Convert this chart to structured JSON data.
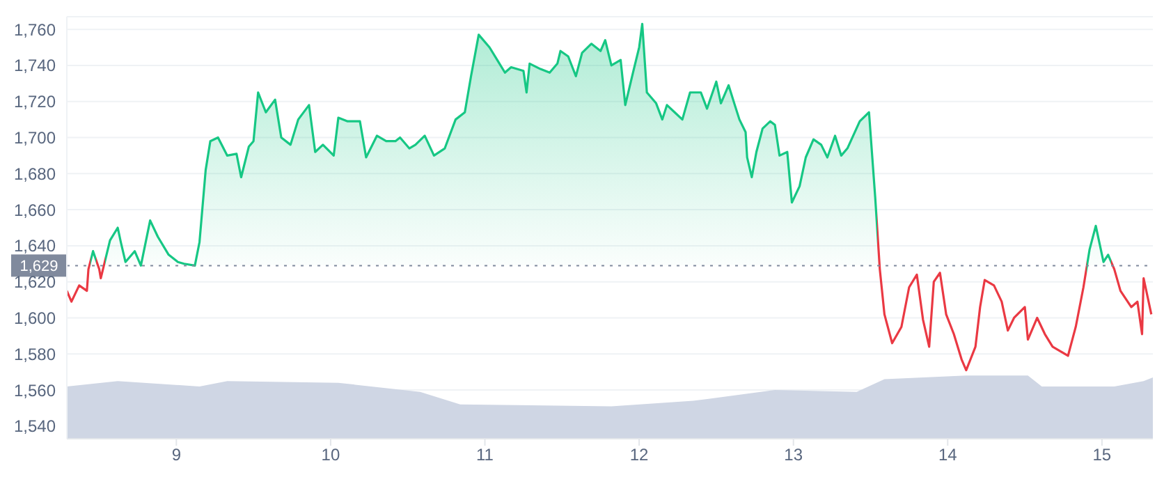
{
  "chart_data": {
    "type": "area",
    "xlim": [
      8.29,
      15.33
    ],
    "xticks": [
      9,
      10,
      11,
      12,
      13,
      14,
      15
    ],
    "ylim": [
      1533,
      1767
    ],
    "yticks": [
      {
        "value": 1540,
        "label": "1,540"
      },
      {
        "value": 1560,
        "label": "1,560"
      },
      {
        "value": 1580,
        "label": "1,580"
      },
      {
        "value": 1600,
        "label": "1,600"
      },
      {
        "value": 1620,
        "label": "1,620"
      },
      {
        "value": 1640,
        "label": "1,640"
      },
      {
        "value": 1660,
        "label": "1,660"
      },
      {
        "value": 1680,
        "label": "1,680"
      },
      {
        "value": 1700,
        "label": "1,700"
      },
      {
        "value": 1720,
        "label": "1,720"
      },
      {
        "value": 1740,
        "label": "1,740"
      },
      {
        "value": 1760,
        "label": "1,760"
      }
    ],
    "grid": "y",
    "marker": "none",
    "ref_lines": [
      {
        "axis": "y",
        "value": 1629,
        "label": "1,629",
        "color": "#808a9d",
        "line_style": "dotted"
      }
    ],
    "series": [
      {
        "type": "area",
        "color": "#cfd6e4",
        "x": [
          8.29,
          8.62,
          9.15,
          9.33,
          10.05,
          10.58,
          10.84,
          11.82,
          12.35,
          12.88,
          13.41,
          13.59,
          14.12,
          14.52,
          14.61,
          15.08,
          15.27,
          15.33
        ],
        "values": [
          1562,
          1565,
          1562,
          1565,
          1564,
          1559,
          1552,
          1551,
          1554,
          1560,
          1559,
          1566,
          1568,
          1568,
          1562,
          1562,
          1565,
          1567
        ]
      },
      {
        "color": "#16c784",
        "x": [
          8.29,
          8.32,
          8.37,
          8.42,
          8.43,
          8.46,
          8.5,
          8.51,
          8.57,
          8.62,
          8.64,
          8.67,
          8.73,
          8.77,
          8.83,
          8.88,
          8.95,
          9.01,
          9.05,
          9.12,
          9.15,
          9.19,
          9.22,
          9.27,
          9.33,
          9.39,
          9.42,
          9.47,
          9.5,
          9.53,
          9.58,
          9.64,
          9.68,
          9.74,
          9.79,
          9.86,
          9.9,
          9.95,
          10.02,
          10.05,
          10.11,
          10.19,
          10.23,
          10.3,
          10.36,
          10.42,
          10.45,
          10.51,
          10.55,
          10.61,
          10.67,
          10.74,
          10.81,
          10.87,
          10.91,
          10.96,
          11.03,
          11.08,
          11.13,
          11.17,
          11.25,
          11.27,
          11.29,
          11.36,
          11.42,
          11.47,
          11.49,
          11.54,
          11.59,
          11.63,
          11.69,
          11.75,
          11.78,
          11.82,
          11.88,
          11.91,
          11.96,
          12.0,
          12.02,
          12.05,
          12.11,
          12.15,
          12.18,
          12.23,
          12.28,
          12.33,
          12.4,
          12.44,
          12.5,
          12.53,
          12.58,
          12.62,
          12.65,
          12.69,
          12.7,
          12.73,
          12.76,
          12.8,
          12.85,
          12.88,
          12.91,
          12.96,
          12.99,
          13.04,
          13.08,
          13.13,
          13.18,
          13.22,
          13.27,
          13.31,
          13.35,
          13.43,
          13.49,
          13.53,
          13.56,
          13.59,
          13.64,
          13.7,
          13.75,
          13.8,
          13.84,
          13.88,
          13.91,
          13.95,
          13.99,
          14.04,
          14.09,
          14.12,
          14.18,
          14.21,
          14.24,
          14.3,
          14.35,
          14.39,
          14.43,
          14.5,
          14.52,
          14.58,
          14.63,
          14.68,
          14.78,
          14.83,
          14.88,
          14.92,
          14.96,
          15.01,
          15.04,
          15.08,
          15.12,
          15.19,
          15.23,
          15.26,
          15.27,
          15.32
        ],
        "values": [
          1615,
          1609,
          1618,
          1615,
          1627,
          1637,
          1627,
          1622,
          1643,
          1650,
          1642,
          1631,
          1637,
          1629,
          1654,
          1645,
          1635,
          1631,
          1630,
          1629,
          1642,
          1682,
          1698,
          1700,
          1690,
          1691,
          1678,
          1695,
          1698,
          1725,
          1714,
          1721,
          1700,
          1696,
          1710,
          1718,
          1692,
          1696,
          1690,
          1711,
          1709,
          1709,
          1689,
          1701,
          1698,
          1698,
          1700,
          1694,
          1696,
          1701,
          1690,
          1694,
          1710,
          1714,
          1734,
          1757,
          1750,
          1743,
          1736,
          1739,
          1737,
          1725,
          1741,
          1738,
          1736,
          1741,
          1748,
          1745,
          1734,
          1747,
          1752,
          1748,
          1754,
          1740,
          1743,
          1718,
          1736,
          1750,
          1763,
          1725,
          1719,
          1710,
          1718,
          1714,
          1710,
          1725,
          1725,
          1716,
          1731,
          1719,
          1729,
          1718,
          1710,
          1703,
          1689,
          1678,
          1692,
          1705,
          1709,
          1707,
          1690,
          1692,
          1664,
          1673,
          1689,
          1699,
          1696,
          1689,
          1701,
          1690,
          1694,
          1709,
          1714,
          1667,
          1627,
          1602,
          1586,
          1595,
          1617,
          1624,
          1599,
          1584,
          1620,
          1625,
          1602,
          1591,
          1577,
          1571,
          1584,
          1606,
          1621,
          1618,
          1609,
          1593,
          1600,
          1606,
          1588,
          1600,
          1591,
          1584,
          1579,
          1595,
          1617,
          1638,
          1651,
          1631,
          1635,
          1627,
          1615,
          1606,
          1609,
          1591,
          1622,
          1602
        ],
        "colors": [
          "#ea3943",
          "#ea3943",
          "#ea3943",
          "#ea3943",
          "#ea3943",
          "#16c784",
          "#ea3943",
          "#ea3943",
          "#16c784",
          "#16c784",
          "#16c784",
          "#16c784",
          "#16c784",
          "#16c784",
          "#16c784",
          "#16c784",
          "#16c784",
          "#16c784",
          "#16c784",
          "#16c784",
          "#16c784",
          "#16c784",
          "#16c784",
          "#16c784",
          "#16c784",
          "#16c784",
          "#16c784",
          "#16c784",
          "#16c784",
          "#16c784",
          "#16c784",
          "#16c784",
          "#16c784",
          "#16c784",
          "#16c784",
          "#16c784",
          "#16c784",
          "#16c784",
          "#16c784",
          "#16c784",
          "#16c784",
          "#16c784",
          "#16c784",
          "#16c784",
          "#16c784",
          "#16c784",
          "#16c784",
          "#16c784",
          "#16c784",
          "#16c784",
          "#16c784",
          "#16c784",
          "#16c784",
          "#16c784",
          "#16c784",
          "#16c784",
          "#16c784",
          "#16c784",
          "#16c784",
          "#16c784",
          "#16c784",
          "#16c784",
          "#16c784",
          "#16c784",
          "#16c784",
          "#16c784",
          "#16c784",
          "#16c784",
          "#16c784",
          "#16c784",
          "#16c784",
          "#16c784",
          "#16c784",
          "#16c784",
          "#16c784",
          "#16c784",
          "#16c784",
          "#16c784",
          "#16c784",
          "#16c784",
          "#16c784",
          "#16c784",
          "#16c784",
          "#16c784",
          "#16c784",
          "#16c784",
          "#16c784",
          "#16c784",
          "#16c784",
          "#16c784",
          "#16c784",
          "#16c784",
          "#16c784",
          "#16c784",
          "#16c784",
          "#16c784",
          "#16c784",
          "#16c784",
          "#16c784",
          "#16c784",
          "#16c784",
          "#16c784",
          "#16c784",
          "#16c784",
          "#16c784",
          "#16c784",
          "#16c784",
          "#16c784",
          "#16c784",
          "#16c784",
          "#16c784",
          "#16c784",
          "#16c784",
          "#16c784",
          "#ea3943",
          "#ea3943",
          "#ea3943",
          "#ea3943",
          "#ea3943",
          "#ea3943",
          "#ea3943",
          "#ea3943",
          "#ea3943",
          "#ea3943",
          "#ea3943",
          "#ea3943",
          "#ea3943",
          "#ea3943",
          "#ea3943",
          "#ea3943",
          "#ea3943",
          "#ea3943",
          "#ea3943",
          "#ea3943",
          "#ea3943",
          "#ea3943",
          "#ea3943",
          "#ea3943",
          "#ea3943",
          "#ea3943",
          "#ea3943",
          "#ea3943",
          "#ea3943",
          "#16c784",
          "#16c784",
          "#16c784",
          "#16c784",
          "#ea3943",
          "#ea3943",
          "#ea3943",
          "#ea3943",
          "#ea3943",
          "#ea3943",
          "#ea3943"
        ]
      }
    ]
  }
}
